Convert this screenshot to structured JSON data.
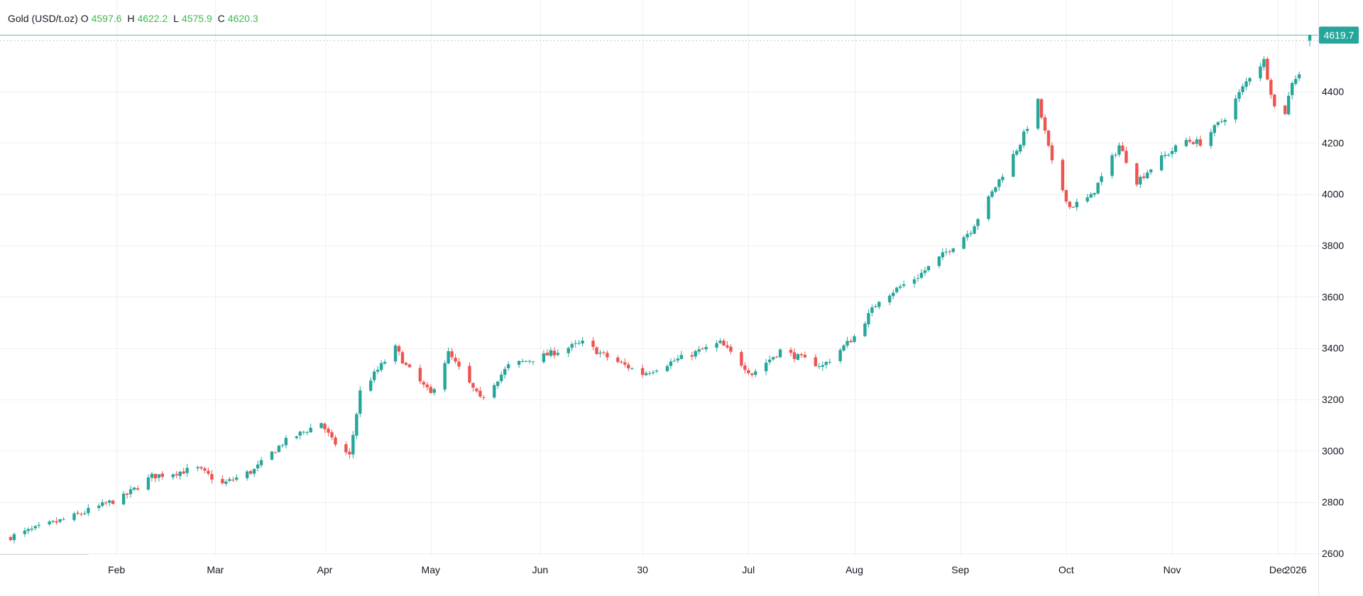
{
  "legend": {
    "symbol": "Gold (USD/t.oz)",
    "o_label": "O",
    "o": "4597.6",
    "h_label": "H",
    "h": "4622.2",
    "l_label": "L",
    "l": "4575.9",
    "c_label": "C",
    "c": "4620.3"
  },
  "last_price_label": "4619.7",
  "colors": {
    "up": "#26a69a",
    "down": "#ef5350",
    "grid": "#efefef",
    "axis_text": "#131722",
    "price_tag": "#26a69a",
    "price_line": "#26a69a",
    "legend_value": "#3fb950"
  },
  "chart_data": {
    "type": "candlestick",
    "title": "Gold (USD/t.oz)",
    "xlabel": "",
    "ylabel": "",
    "ylim": [
      2580,
      4660
    ],
    "xlim": [
      "2025-01-01",
      "2026-01-07"
    ],
    "y_ticks": [
      2600,
      2800,
      3000,
      3200,
      3400,
      3600,
      3800,
      4000,
      4200,
      4400
    ],
    "x_ticks": [
      {
        "label": "Feb",
        "date": "2025-02-01"
      },
      {
        "label": "Mar",
        "date": "2025-03-01"
      },
      {
        "label": "Apr",
        "date": "2025-04-01"
      },
      {
        "label": "May",
        "date": "2025-05-01"
      },
      {
        "label": "Jun",
        "date": "2025-06-01"
      },
      {
        "label": "30",
        "date": "2025-06-30"
      },
      {
        "label": "Jul",
        "date": "2025-07-30"
      },
      {
        "label": "Aug",
        "date": "2025-08-29"
      },
      {
        "label": "Sep",
        "date": "2025-09-28"
      },
      {
        "label": "Oct",
        "date": "2025-10-28"
      },
      {
        "label": "Nov",
        "date": "2025-11-27"
      },
      {
        "label": "Dec",
        "date": "2025-12-27"
      },
      {
        "label": "2026",
        "date": "2026-01-01"
      }
    ],
    "grid": true,
    "last_price": 4619.7,
    "trend_points": [
      [
        "2025-01-02",
        2665
      ],
      [
        "2025-01-10",
        2700
      ],
      [
        "2025-01-20",
        2745
      ],
      [
        "2025-02-03",
        2820
      ],
      [
        "2025-02-11",
        2900
      ],
      [
        "2025-02-24",
        2930
      ],
      [
        "2025-03-03",
        2870
      ],
      [
        "2025-03-12",
        2925
      ],
      [
        "2025-03-20",
        3030
      ],
      [
        "2025-03-31",
        3110
      ],
      [
        "2025-04-03",
        3040
      ],
      [
        "2025-04-08",
        2980
      ],
      [
        "2025-04-11",
        3230
      ],
      [
        "2025-04-21",
        3400
      ],
      [
        "2025-04-24",
        3330
      ],
      [
        "2025-05-01",
        3220
      ],
      [
        "2025-05-06",
        3380
      ],
      [
        "2025-05-15",
        3200
      ],
      [
        "2025-05-23",
        3330
      ],
      [
        "2025-06-02",
        3370
      ],
      [
        "2025-06-13",
        3420
      ],
      [
        "2025-06-20",
        3365
      ],
      [
        "2025-06-30",
        3300
      ],
      [
        "2025-07-07",
        3340
      ],
      [
        "2025-07-22",
        3420
      ],
      [
        "2025-07-31",
        3300
      ],
      [
        "2025-08-08",
        3390
      ],
      [
        "2025-08-20",
        3330
      ],
      [
        "2025-08-29",
        3445
      ],
      [
        "2025-09-05",
        3590
      ],
      [
        "2025-09-16",
        3680
      ],
      [
        "2025-09-22",
        3750
      ],
      [
        "2025-10-01",
        3860
      ],
      [
        "2025-10-08",
        4030
      ],
      [
        "2025-10-15",
        4200
      ],
      [
        "2025-10-20",
        4360
      ],
      [
        "2025-10-24",
        4120
      ],
      [
        "2025-10-29",
        3950
      ],
      [
        "2025-11-04",
        3990
      ],
      [
        "2025-11-12",
        4190
      ],
      [
        "2025-11-17",
        4050
      ],
      [
        "2025-11-24",
        4140
      ],
      [
        "2025-12-01",
        4210
      ],
      [
        "2025-12-05",
        4200
      ],
      [
        "2025-12-12",
        4300
      ],
      [
        "2025-12-19",
        4460
      ],
      [
        "2025-12-23",
        4520
      ],
      [
        "2025-12-26",
        4340
      ],
      [
        "2025-12-29",
        4320
      ],
      [
        "2025-12-31",
        4440
      ],
      [
        "2026-01-02",
        4470
      ],
      [
        "2026-01-05",
        4620
      ]
    ]
  }
}
